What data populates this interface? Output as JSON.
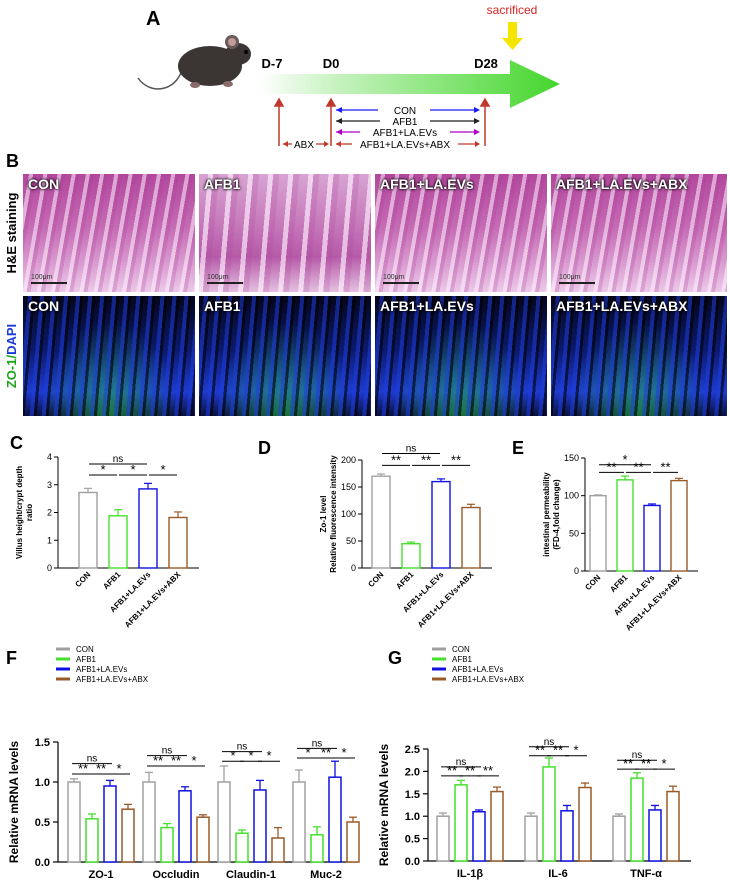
{
  "panels": {
    "A": "A",
    "B": "B",
    "C": "C",
    "D": "D",
    "E": "E",
    "F": "F",
    "G": "G"
  },
  "timeline": {
    "sacrificed": "sacrificed",
    "d_minus7": "D-7",
    "d0": "D0",
    "d28": "D28",
    "groups": [
      "CON",
      "AFB1",
      "AFB1+LA.EVs",
      "AFB1+LA.EVs+ABX"
    ],
    "abx": "ABX",
    "colors": {
      "con": "#1a1aff",
      "afb1": "#222222",
      "laevs": "#b000c8",
      "abx": "#c0392b",
      "arrow": "#44d62c",
      "sac": "#f5e400"
    }
  },
  "panelB": {
    "row1_label": "H&E staining",
    "row2_label_a": "ZO-1/",
    "row2_label_b": "DAPI",
    "tiles": [
      "CON",
      "AFB1",
      "AFB1+LA.EVs",
      "AFB1+LA.EVs+ABX"
    ],
    "scale": "100μm"
  },
  "chart_data": [
    {
      "id": "C",
      "type": "bar",
      "categories": [
        "CON",
        "AFB1",
        "AFB1+LA.EVs",
        "AFB1+LA.EVs+ABX"
      ],
      "values": [
        2.72,
        1.88,
        2.85,
        1.82
      ],
      "errors": [
        0.15,
        0.22,
        0.2,
        0.2
      ],
      "colors": [
        "#a0a0a0",
        "#44e02c",
        "#1010e0",
        "#9a5a28"
      ],
      "ylabel": "Villus height/crypt depth ratio",
      "ylabel_lines": [
        "Villus height/crypt depth",
        "ratio"
      ],
      "ylim": [
        0,
        4
      ],
      "yticks": [
        0,
        1,
        2,
        3,
        4
      ],
      "sig": [
        {
          "a": 0,
          "b": 1,
          "label": "*",
          "y": 3.35
        },
        {
          "a": 1,
          "b": 2,
          "label": "*",
          "y": 3.35
        },
        {
          "a": 2,
          "b": 3,
          "label": "*",
          "y": 3.35
        },
        {
          "a": 0,
          "b": 2,
          "label": "ns",
          "y": 3.75
        }
      ]
    },
    {
      "id": "D",
      "type": "bar",
      "categories": [
        "CON",
        "AFB1",
        "AFB1+LA.EVs",
        "AFB1+LA.EVs+ABX"
      ],
      "values": [
        170,
        45,
        160,
        112
      ],
      "errors": [
        4,
        3,
        5,
        6
      ],
      "colors": [
        "#a0a0a0",
        "#44e02c",
        "#1010e0",
        "#9a5a28"
      ],
      "ylabel": "Zo-1 level Relative fluorescence intensity",
      "ylabel_lines": [
        "Zo-1 level",
        "Relative fluorescence intensity"
      ],
      "ylim": [
        0,
        200
      ],
      "yticks": [
        0,
        50,
        100,
        150,
        200
      ],
      "sig": [
        {
          "a": 0,
          "b": 1,
          "label": "**",
          "y": 190
        },
        {
          "a": 1,
          "b": 2,
          "label": "**",
          "y": 190
        },
        {
          "a": 2,
          "b": 3,
          "label": "**",
          "y": 190
        },
        {
          "a": 0,
          "b": 2,
          "label": "ns",
          "y": 212
        }
      ]
    },
    {
      "id": "E",
      "type": "bar",
      "categories": [
        "CON",
        "AFB1",
        "AFB1+LA.EVs",
        "AFB1+LA.EVs+ABX"
      ],
      "values": [
        100,
        121,
        87,
        120
      ],
      "errors": [
        1,
        5,
        2,
        3
      ],
      "colors": [
        "#a0a0a0",
        "#44e02c",
        "#1010e0",
        "#9a5a28"
      ],
      "ylabel": "intestinal permeability (FD-4,fold change)",
      "ylabel_lines": [
        "intestinal permeability",
        "(FD-4,fold change)"
      ],
      "ylim": [
        0,
        150
      ],
      "yticks": [
        0,
        50,
        100,
        150
      ],
      "sig": [
        {
          "a": 0,
          "b": 1,
          "label": "**",
          "y": 131
        },
        {
          "a": 1,
          "b": 2,
          "label": "**",
          "y": 131
        },
        {
          "a": 2,
          "b": 3,
          "label": "**",
          "y": 131
        },
        {
          "a": 0,
          "b": 2,
          "label": "*",
          "y": 141
        }
      ]
    },
    {
      "id": "F",
      "type": "bar",
      "groups": [
        "ZO-1",
        "Occludin",
        "Claudin-1",
        "Muc-2"
      ],
      "series": [
        {
          "name": "CON",
          "color": "#a0a0a0",
          "values": [
            1.0,
            1.0,
            1.0,
            1.0
          ],
          "errors": [
            0.04,
            0.12,
            0.2,
            0.15
          ]
        },
        {
          "name": "AFB1",
          "color": "#44e02c",
          "values": [
            0.54,
            0.43,
            0.36,
            0.34
          ],
          "errors": [
            0.06,
            0.05,
            0.04,
            0.1
          ]
        },
        {
          "name": "AFB1+LA.EVs",
          "color": "#1010e0",
          "values": [
            0.95,
            0.89,
            0.9,
            1.06
          ],
          "errors": [
            0.07,
            0.05,
            0.12,
            0.2
          ]
        },
        {
          "name": "AFB1+LA.EVs+ABX",
          "color": "#9a5a28",
          "values": [
            0.66,
            0.56,
            0.3,
            0.5
          ],
          "errors": [
            0.06,
            0.03,
            0.13,
            0.06
          ]
        }
      ],
      "ylabel": "Relative mRNA levels",
      "ylim": [
        0,
        1.5
      ],
      "yticks": [
        0.0,
        0.5,
        1.0,
        1.5
      ],
      "sig": [
        {
          "g": 0,
          "a": 0,
          "b": 1,
          "label": "**",
          "y": 1.1
        },
        {
          "g": 0,
          "a": 1,
          "b": 2,
          "label": "**",
          "y": 1.1
        },
        {
          "g": 0,
          "a": 2,
          "b": 3,
          "label": "*",
          "y": 1.1
        },
        {
          "g": 0,
          "a": 0,
          "b": 2,
          "label": "ns",
          "y": 1.23
        },
        {
          "g": 1,
          "a": 0,
          "b": 1,
          "label": "**",
          "y": 1.2
        },
        {
          "g": 1,
          "a": 1,
          "b": 2,
          "label": "**",
          "y": 1.2
        },
        {
          "g": 1,
          "a": 2,
          "b": 3,
          "label": "*",
          "y": 1.2
        },
        {
          "g": 1,
          "a": 0,
          "b": 2,
          "label": "ns",
          "y": 1.33
        },
        {
          "g": 2,
          "a": 0,
          "b": 1,
          "label": "*",
          "y": 1.26
        },
        {
          "g": 2,
          "a": 1,
          "b": 2,
          "label": "*",
          "y": 1.26
        },
        {
          "g": 2,
          "a": 2,
          "b": 3,
          "label": "*",
          "y": 1.26
        },
        {
          "g": 2,
          "a": 0,
          "b": 2,
          "label": "ns",
          "y": 1.38
        },
        {
          "g": 3,
          "a": 0,
          "b": 1,
          "label": "*",
          "y": 1.3
        },
        {
          "g": 3,
          "a": 1,
          "b": 2,
          "label": "**",
          "y": 1.3
        },
        {
          "g": 3,
          "a": 2,
          "b": 3,
          "label": "*",
          "y": 1.3
        },
        {
          "g": 3,
          "a": 0,
          "b": 2,
          "label": "ns",
          "y": 1.42
        }
      ]
    },
    {
      "id": "G",
      "type": "bar",
      "groups": [
        "IL-1β",
        "IL-6",
        "TNF-α"
      ],
      "series": [
        {
          "name": "CON",
          "color": "#a0a0a0",
          "values": [
            1.0,
            1.0,
            1.0
          ],
          "errors": [
            0.07,
            0.07,
            0.05
          ]
        },
        {
          "name": "AFB1",
          "color": "#44e02c",
          "values": [
            1.7,
            2.1,
            1.85
          ],
          "errors": [
            0.1,
            0.2,
            0.12
          ]
        },
        {
          "name": "AFB1+LA.EVs",
          "color": "#1010e0",
          "values": [
            1.1,
            1.12,
            1.14
          ],
          "errors": [
            0.04,
            0.12,
            0.1
          ]
        },
        {
          "name": "AFB1+LA.EVs+ABX",
          "color": "#9a5a28",
          "values": [
            1.55,
            1.64,
            1.55
          ],
          "errors": [
            0.1,
            0.1,
            0.12
          ]
        }
      ],
      "ylabel": "Relative mRNA levels",
      "ylim": [
        0,
        2.5
      ],
      "yticks": [
        0.0,
        0.5,
        1.0,
        1.5,
        2.0,
        2.5
      ],
      "sig": [
        {
          "g": 0,
          "a": 0,
          "b": 1,
          "label": "**",
          "y": 1.9
        },
        {
          "g": 0,
          "a": 1,
          "b": 2,
          "label": "**",
          "y": 1.9
        },
        {
          "g": 0,
          "a": 2,
          "b": 3,
          "label": "**",
          "y": 1.9
        },
        {
          "g": 0,
          "a": 0,
          "b": 2,
          "label": "ns",
          "y": 2.1
        },
        {
          "g": 1,
          "a": 0,
          "b": 1,
          "label": "**",
          "y": 2.35
        },
        {
          "g": 1,
          "a": 1,
          "b": 2,
          "label": "**",
          "y": 2.35
        },
        {
          "g": 1,
          "a": 2,
          "b": 3,
          "label": "*",
          "y": 2.35
        },
        {
          "g": 1,
          "a": 0,
          "b": 2,
          "label": "ns",
          "y": 2.55
        },
        {
          "g": 2,
          "a": 0,
          "b": 1,
          "label": "**",
          "y": 2.05
        },
        {
          "g": 2,
          "a": 1,
          "b": 2,
          "label": "**",
          "y": 2.05
        },
        {
          "g": 2,
          "a": 2,
          "b": 3,
          "label": "*",
          "y": 2.05
        },
        {
          "g": 2,
          "a": 0,
          "b": 2,
          "label": "ns",
          "y": 2.25
        }
      ]
    }
  ]
}
